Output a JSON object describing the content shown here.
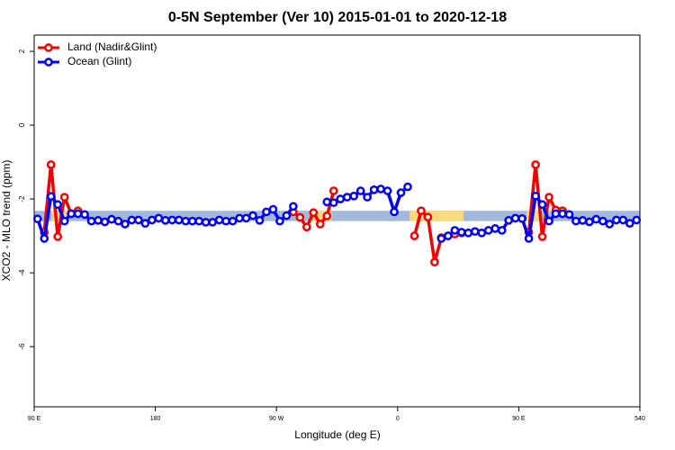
{
  "chart_data": {
    "type": "line",
    "title": "0-5N September (Ver 10)   2015-01-01 to 2020-12-18",
    "xlabel": "Longitude (deg E)",
    "ylabel": "XCO2 - MLO trend (ppm)",
    "xlim": [
      90,
      540
    ],
    "xticks": [
      {
        "value": 90,
        "label": "90 E"
      },
      180,
      {
        "value": 270,
        "label": "90 W"
      },
      {
        "value": 360,
        "label": "0"
      },
      {
        "value": 450,
        "label": "90 E"
      },
      540
    ],
    "ylim": [
      -7.63,
      2.44
    ],
    "yticks": [
      2,
      0,
      -2,
      -4,
      -6
    ],
    "legend": "top-left",
    "ocean_band": {
      "color": "#a3b9dc",
      "range": [
        -2.32,
        -2.6
      ]
    },
    "land_band": {
      "color": "#fcd97a",
      "range": [
        -2.32,
        -2.6
      ],
      "x": [
        [
          103,
          115
        ],
        [
          295,
          311
        ],
        [
          369,
          409
        ],
        [
          456,
          466
        ]
      ]
    },
    "x": [
      92.5,
      97.5,
      102.5,
      107.5,
      112.5,
      117.5,
      122.5,
      127.5,
      132.5,
      137.5,
      142.5,
      147.5,
      152.5,
      157.5,
      162.5,
      167.5,
      172.5,
      177.5,
      182.5,
      187.5,
      192.5,
      197.5,
      202.5,
      207.5,
      212.5,
      217.5,
      222.5,
      227.5,
      232.5,
      237.5,
      242.5,
      247.5,
      252.5,
      257.5,
      262.5,
      267.5,
      272.5,
      277.5,
      282.5,
      287.5,
      292.5,
      297.5,
      302.5,
      307.5,
      312.5,
      317.5,
      322.5,
      327.5,
      332.5,
      337.5,
      342.5,
      347.5,
      352.5,
      357.5,
      362.5,
      367.5,
      372.5,
      377.5,
      382.5,
      387.5,
      392.5,
      397.5,
      402.5,
      407.5,
      412.5,
      417.5,
      422.5,
      427.5,
      432.5,
      437.5,
      442.5,
      447.5,
      452.5,
      457.5,
      462.5,
      467.5,
      472.5,
      477.5,
      482.5,
      487.5,
      492.5,
      497.5,
      502.5,
      507.5,
      512.5,
      517.5,
      522.5,
      527.5,
      532.5,
      537.5
    ],
    "series": [
      {
        "name": "Land (Nadir&Glint)",
        "color": "#ee0000",
        "values": [
          null,
          -2.9,
          -1.07,
          -3.02,
          -1.95,
          -2.4,
          -2.32,
          null,
          null,
          null,
          null,
          null,
          null,
          null,
          null,
          null,
          null,
          null,
          null,
          null,
          null,
          null,
          null,
          null,
          null,
          null,
          null,
          null,
          null,
          null,
          null,
          null,
          null,
          null,
          null,
          null,
          null,
          null,
          -2.35,
          -2.5,
          -2.76,
          -2.37,
          -2.68,
          -2.46,
          -1.78,
          null,
          null,
          null,
          null,
          null,
          null,
          null,
          null,
          null,
          null,
          null,
          -3.0,
          -2.32,
          -2.49,
          -3.71,
          -3.05,
          -3.0,
          -2.95,
          -2.92,
          null,
          null,
          null,
          null,
          null,
          null,
          null,
          null,
          null,
          -2.9,
          -1.07,
          -3.02,
          -1.95,
          -2.3,
          -2.32,
          null,
          null,
          null,
          null,
          null,
          null,
          null,
          null,
          null,
          null,
          null
        ]
      },
      {
        "name": "Ocean (Glint)",
        "color": "#0000ee",
        "values": [
          -2.54,
          -3.07,
          -1.93,
          -2.15,
          -2.6,
          -2.4,
          -2.4,
          -2.42,
          -2.6,
          -2.58,
          -2.62,
          -2.55,
          -2.6,
          -2.68,
          -2.57,
          -2.57,
          -2.66,
          -2.57,
          -2.52,
          -2.58,
          -2.57,
          -2.57,
          -2.6,
          -2.6,
          -2.6,
          -2.63,
          -2.63,
          -2.57,
          -2.6,
          -2.6,
          -2.52,
          -2.52,
          -2.45,
          -2.58,
          -2.35,
          -2.28,
          -2.6,
          -2.45,
          -2.2,
          null,
          null,
          null,
          null,
          -2.08,
          -2.1,
          -2.0,
          -1.95,
          -1.92,
          -1.78,
          -1.95,
          -1.75,
          -1.73,
          -1.78,
          -2.35,
          -1.83,
          -1.67,
          null,
          null,
          null,
          null,
          -3.07,
          -3.0,
          -2.85,
          -2.9,
          -2.92,
          -2.88,
          -2.92,
          -2.85,
          -2.8,
          -2.85,
          -2.58,
          -2.52,
          -2.53,
          -3.07,
          -1.92,
          -2.15,
          -2.6,
          -2.4,
          -2.4,
          -2.42,
          -2.6,
          -2.58,
          -2.62,
          -2.55,
          -2.6,
          -2.68,
          -2.57,
          -2.57,
          -2.66,
          -2.57
        ]
      }
    ]
  }
}
